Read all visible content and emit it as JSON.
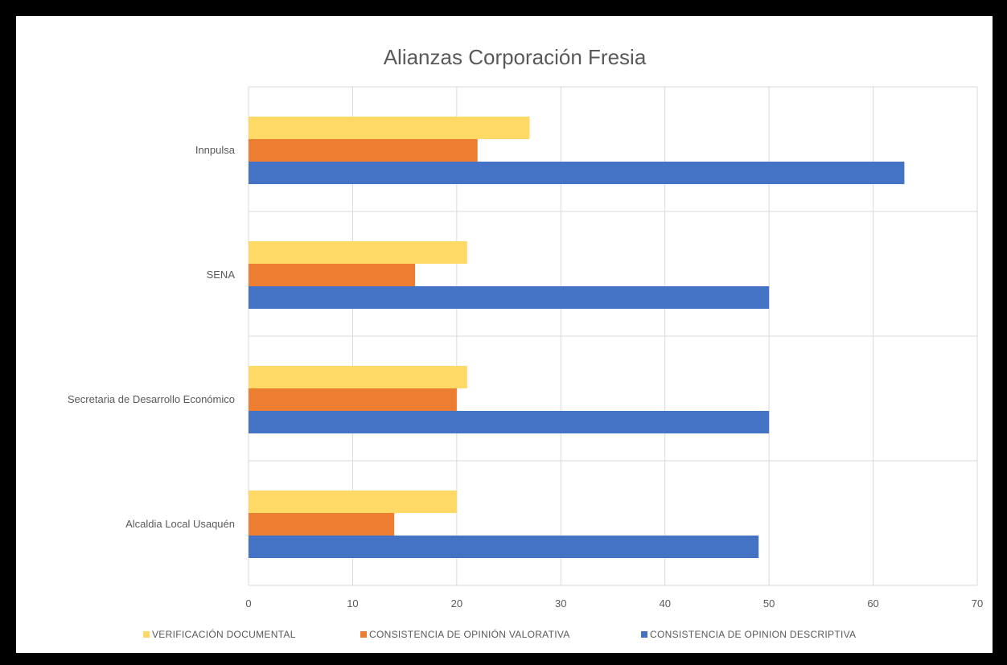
{
  "chart_data": {
    "type": "bar",
    "orientation": "horizontal",
    "title": "Alianzas Corporación Fresia",
    "categories": [
      "Innpulsa",
      "SENA",
      "Secretaria de Desarrollo Económico",
      "Alcaldia Local Usaquén"
    ],
    "series": [
      {
        "name": "VERIFICACIÓN DOCUMENTAL",
        "color": "#FFD966",
        "values": [
          27,
          21,
          21,
          20
        ]
      },
      {
        "name": "CONSISTENCIA DE OPINIÓN VALORATIVA",
        "color": "#ED7D31",
        "values": [
          22,
          16,
          20,
          14
        ]
      },
      {
        "name": "CONSISTENCIA DE OPINION DESCRIPTIVA",
        "color": "#4472C4",
        "values": [
          63,
          50,
          50,
          49
        ]
      }
    ],
    "xlim": [
      0,
      70
    ],
    "xticks": [
      "0",
      "10",
      "20",
      "30",
      "40",
      "50",
      "60",
      "70"
    ],
    "grid": true,
    "legend_position": "bottom"
  }
}
